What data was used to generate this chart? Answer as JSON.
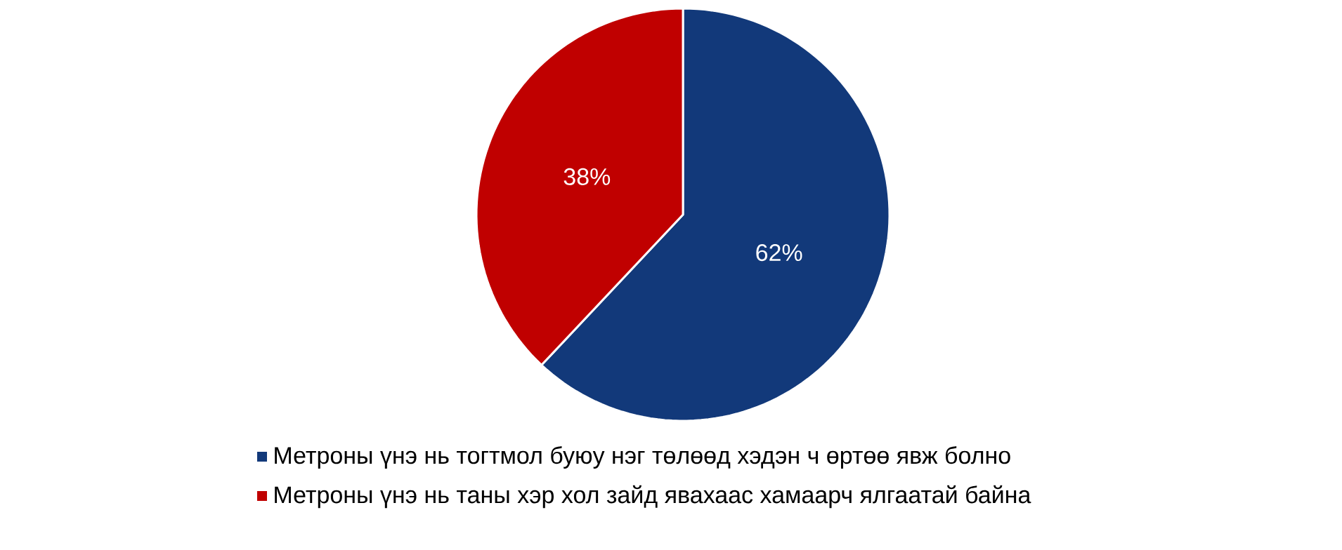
{
  "chart_data": {
    "type": "pie",
    "categories": [
      "Метроны үнэ нь тогтмол буюу нэг төлөөд хэдэн ч өртөө явж болно",
      "Метроны үнэ нь таны хэр хол зайд явахаас хамаарч ялгаатай байна"
    ],
    "values": [
      62,
      38
    ],
    "colors": [
      "#12397a",
      "#c00000"
    ],
    "value_labels": [
      "62%",
      "38%"
    ],
    "data_labels": true,
    "legend": "bottom"
  }
}
